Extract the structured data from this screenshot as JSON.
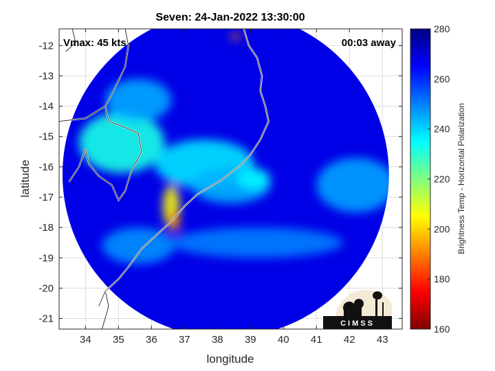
{
  "chart_data": {
    "type": "heatmap",
    "title": "Seven: 24-Jan-2022 13:30:00",
    "xlabel": "longitude",
    "ylabel": "latitude",
    "xlim": [
      33.2,
      43.6
    ],
    "ylim": [
      -21.35,
      -11.45
    ],
    "xticks": [
      34,
      35,
      36,
      37,
      38,
      39,
      40,
      41,
      42,
      43
    ],
    "yticks": [
      -12,
      -13,
      -14,
      -15,
      -16,
      -17,
      -18,
      -19,
      -20,
      -21
    ],
    "grid": true,
    "annotations": {
      "vmax": "Vmax: 45 kts",
      "time_away": "00:03 away"
    },
    "colorbar": {
      "label": "Brightness Temp - Horizontal Polarization",
      "range": [
        160,
        280
      ],
      "ticks": [
        160,
        180,
        200,
        220,
        240,
        260,
        280
      ],
      "colormap": "jet"
    },
    "swath": {
      "center_lon": 38.25,
      "center_lat": -16.25,
      "radius_deg": 4.95
    },
    "background_value": 268,
    "features": [
      {
        "name": "upper-left-land",
        "lon": 35.1,
        "lat": -15.2,
        "rlon": 1.3,
        "rlat": 1.0,
        "value": 232
      },
      {
        "name": "central-cloud",
        "lon": 37.6,
        "lat": -15.9,
        "rlon": 1.5,
        "rlat": 0.8,
        "value": 238
      },
      {
        "name": "storm-band",
        "lon": 38.4,
        "lat": -16.6,
        "rlon": 1.2,
        "rlat": 0.6,
        "value": 244
      },
      {
        "name": "eye-ring",
        "lon": 39.1,
        "lat": -16.4,
        "rlon": 0.5,
        "rlat": 0.35,
        "value": 236
      },
      {
        "name": "cold-core",
        "lon": 36.6,
        "lat": -17.3,
        "rlon": 0.25,
        "rlat": 0.7,
        "value": 205
      },
      {
        "name": "cold-tip",
        "lon": 36.7,
        "lat": -17.8,
        "rlon": 0.15,
        "rlat": 0.35,
        "value": 190
      },
      {
        "name": "south-band",
        "lon": 39.2,
        "lat": -18.5,
        "rlon": 2.6,
        "rlat": 0.5,
        "value": 250
      },
      {
        "name": "east-cloud",
        "lon": 42.2,
        "lat": -16.6,
        "rlon": 1.2,
        "rlat": 0.9,
        "value": 246
      },
      {
        "name": "northwest-cloud",
        "lon": 35.6,
        "lat": -13.8,
        "rlon": 1.0,
        "rlat": 0.7,
        "value": 245
      },
      {
        "name": "north-spot",
        "lon": 38.55,
        "lat": -11.7,
        "rlon": 0.15,
        "rlat": 0.1,
        "value": 190
      },
      {
        "name": "southwest-cloud",
        "lon": 35.6,
        "lat": -18.6,
        "rlon": 1.1,
        "rlat": 0.6,
        "value": 248
      }
    ],
    "coastline": [
      [
        38.8,
        -11.45
      ],
      [
        38.95,
        -12.0
      ],
      [
        39.2,
        -12.4
      ],
      [
        39.35,
        -13.0
      ],
      [
        39.3,
        -13.5
      ],
      [
        39.45,
        -14.0
      ],
      [
        39.55,
        -14.5
      ],
      [
        39.3,
        -15.1
      ],
      [
        39.0,
        -15.6
      ],
      [
        38.7,
        -15.95
      ],
      [
        38.1,
        -16.45
      ],
      [
        37.4,
        -16.9
      ],
      [
        37.0,
        -17.3
      ],
      [
        36.6,
        -17.8
      ],
      [
        36.2,
        -18.2
      ],
      [
        35.7,
        -18.7
      ],
      [
        35.3,
        -19.3
      ],
      [
        35.0,
        -19.7
      ],
      [
        34.6,
        -20.1
      ],
      [
        34.4,
        -20.6
      ]
    ],
    "borders": [
      [
        [
          35.2,
          -11.45
        ],
        [
          35.3,
          -12.0
        ],
        [
          35.2,
          -12.7
        ],
        [
          34.85,
          -13.5
        ],
        [
          34.6,
          -14.0
        ],
        [
          34.7,
          -14.5
        ],
        [
          35.2,
          -14.7
        ],
        [
          35.6,
          -14.9
        ],
        [
          35.7,
          -15.5
        ],
        [
          35.4,
          -16.1
        ],
        [
          35.2,
          -16.8
        ],
        [
          35.0,
          -17.1
        ],
        [
          34.8,
          -16.6
        ],
        [
          34.4,
          -16.3
        ],
        [
          34.1,
          -15.9
        ],
        [
          34.0,
          -15.4
        ]
      ],
      [
        [
          33.2,
          -14.5
        ],
        [
          34.0,
          -14.4
        ],
        [
          34.6,
          -14.0
        ]
      ],
      [
        [
          34.0,
          -15.4
        ],
        [
          33.8,
          -16.0
        ],
        [
          33.5,
          -16.5
        ]
      ],
      [
        [
          34.6,
          -20.1
        ],
        [
          34.7,
          -20.6
        ],
        [
          34.5,
          -21.35
        ]
      ],
      [
        [
          33.6,
          -11.45
        ],
        [
          33.7,
          -11.9
        ],
        [
          33.4,
          -12.2
        ]
      ]
    ]
  }
}
